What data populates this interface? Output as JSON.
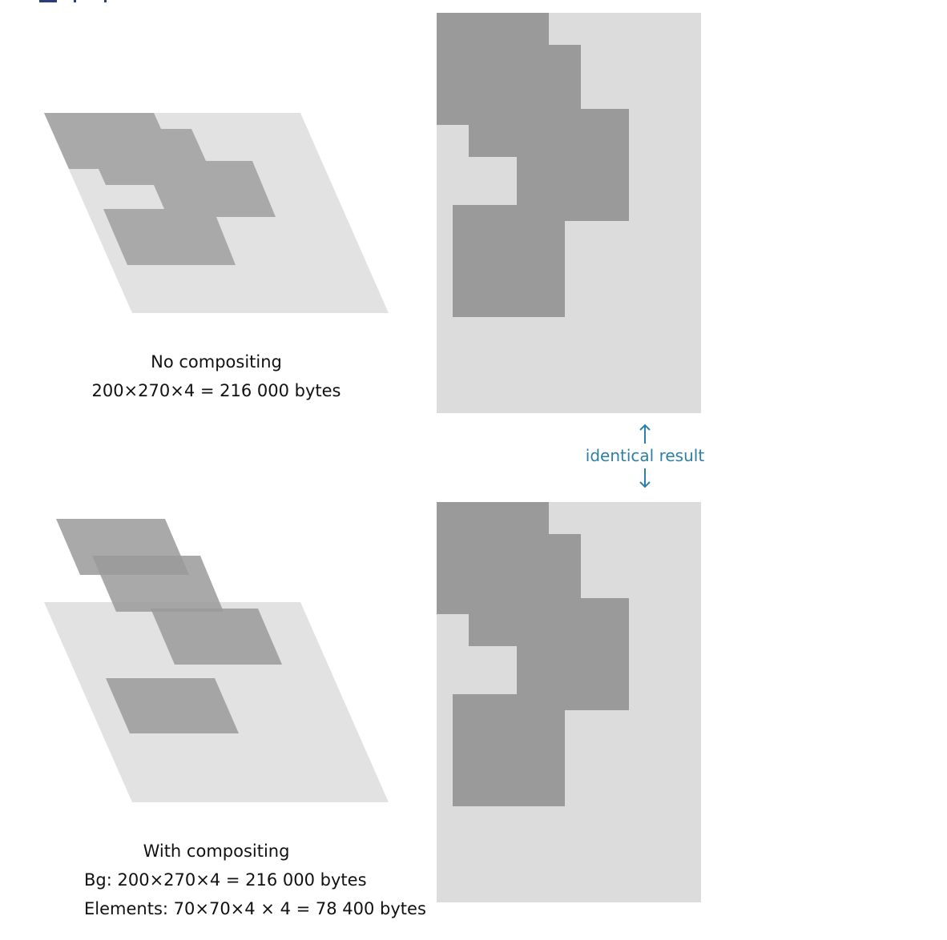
{
  "colors": {
    "background": "#ffffff",
    "base_layer": "#e2e2e2",
    "element_flat": "#a9a9a9",
    "element_layer": "#9a9a9a",
    "result_background": "#dcdcdc",
    "result_element": "#9a9a9a",
    "accent": "#2e7fa6",
    "top_mark": "#2a3f7a"
  },
  "top_panel": {
    "caption_line1": "No compositing",
    "caption_line2": "200×270×4 = 216 000 bytes"
  },
  "bottom_panel": {
    "caption_line1": "With compositing",
    "caption_line2": "Bg: 200×270×4 = 216 000 bytes",
    "caption_line3": "Elements: 70×70×4 × 4 = 78 400 bytes"
  },
  "comparison": {
    "label": "identical result",
    "arrow_up_icon": "arrow-up-icon",
    "arrow_down_icon": "arrow-down-icon"
  }
}
